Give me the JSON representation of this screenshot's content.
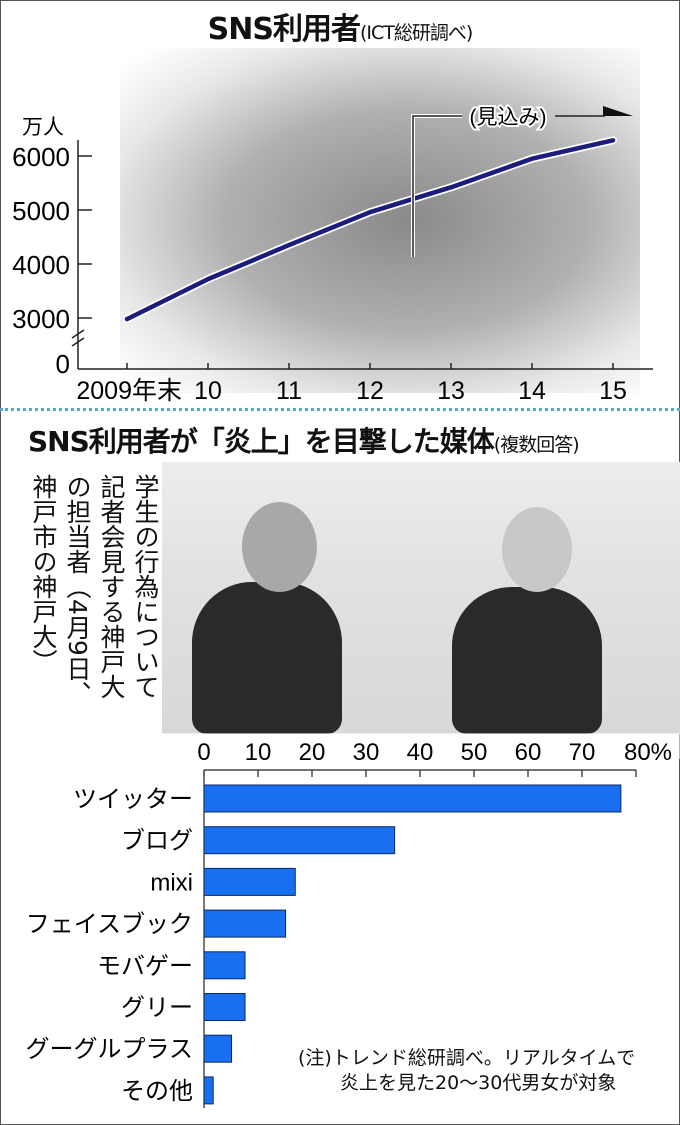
{
  "chart_data": [
    {
      "type": "line",
      "title": "SNS利用者",
      "subtitle": "(ICT総研調べ)",
      "ylabel": "万人",
      "x": [
        "2009年末",
        "10",
        "11",
        "12",
        "13",
        "14",
        "15"
      ],
      "series": [
        {
          "values": [
            2980,
            3720,
            4350,
            4960,
            5420,
            5950,
            6290
          ]
        }
      ],
      "yticks": [
        "0",
        "3000",
        "4000",
        "5000",
        "6000"
      ],
      "ylim": [
        0,
        6300
      ],
      "axis_break": true,
      "annotation": "(見込み)",
      "line_color": "#1c1c7a"
    },
    {
      "type": "bar",
      "orientation": "horizontal",
      "title": "SNS利用者が「炎上」を目撃した媒体",
      "subtitle": "(複数回答)",
      "categories": [
        "ツイッター",
        "ブログ",
        "mixi",
        "フェイスブック",
        "モバゲー",
        "グリー",
        "グーグルプラス",
        "その他"
      ],
      "values": [
        77.2,
        35.3,
        16.9,
        15.1,
        7.6,
        7.6,
        5.1,
        1.7
      ],
      "xticks": [
        "0",
        "10",
        "20",
        "30",
        "40",
        "50",
        "60",
        "70",
        "80%"
      ],
      "xlim": [
        0,
        80
      ],
      "bar_color": "#1a6ef0",
      "note_lines": [
        "(注)トレンド総研調べ。リアルタイムで",
        "炎上を見た20〜30代男女が対象"
      ]
    }
  ],
  "photo_caption": "学生の行為について記者会見する神戸大の担当者（4月9日、神戸市の神戸大）"
}
